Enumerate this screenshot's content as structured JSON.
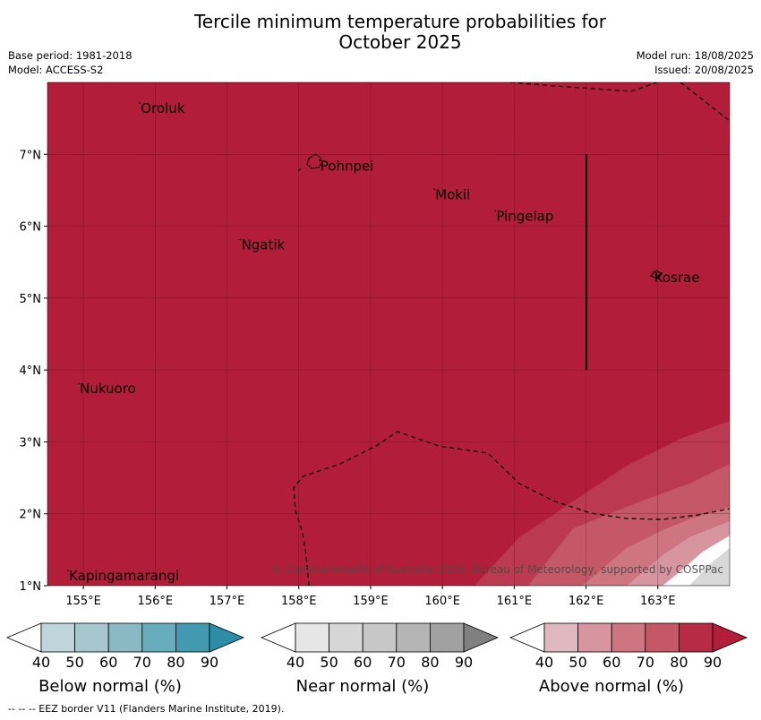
{
  "title_line1": "Tercile minimum temperature probabilities for",
  "title_line2": "October 2025",
  "base_period": "Base period: 1981-2018",
  "model": "Model: ACCESS-S2",
  "model_run": "Model run: 18/08/2025",
  "issued": "Issued: 20/08/2025",
  "map": {
    "lon_range": [
      154.5,
      164.0
    ],
    "lat_range": [
      1.0,
      8.0
    ],
    "lon_ticks": [
      "155°E",
      "156°E",
      "157°E",
      "158°E",
      "159°E",
      "160°E",
      "161°E",
      "162°E",
      "163°E"
    ],
    "lat_ticks": [
      "1°N",
      "2°N",
      "3°N",
      "4°N",
      "5°N",
      "6°N",
      "7°N"
    ],
    "fill_color": "#b21e39",
    "places": [
      {
        "name": "Oroluk",
        "lon": 155.8,
        "lat": 7.65
      },
      {
        "name": "Pohnpei",
        "lon": 158.3,
        "lat": 6.85
      },
      {
        "name": "Mokil",
        "lon": 159.9,
        "lat": 6.45
      },
      {
        "name": "Pingelap",
        "lon": 160.75,
        "lat": 6.15
      },
      {
        "name": "Ngatik",
        "lon": 157.2,
        "lat": 5.75
      },
      {
        "name": "Kosrae",
        "lon": 162.95,
        "lat": 5.3
      },
      {
        "name": "Nukuoro",
        "lon": 154.95,
        "lat": 3.75
      },
      {
        "name": "Kapingamarangi",
        "lon": 154.8,
        "lat": 1.15
      }
    ],
    "copyright": "© Commonwealth of Australia 2025, Bureau of Meteorology, supported by COSPPac"
  },
  "legends": [
    {
      "label": "Below normal (%)",
      "colors": [
        "#bed5dc",
        "#a6c7ce",
        "#8bb9c3",
        "#68adbd",
        "#4399af",
        "#2c8da6"
      ],
      "ticks": [
        "40",
        "50",
        "60",
        "70",
        "80",
        "90"
      ]
    },
    {
      "label": "Near normal (%)",
      "colors": [
        "#e6e6e6",
        "#d6d6d6",
        "#c7c7c7",
        "#b5b5b5",
        "#a1a1a1",
        "#808080"
      ],
      "ticks": [
        "40",
        "50",
        "60",
        "70",
        "80",
        "90"
      ]
    },
    {
      "label": "Above normal (%)",
      "colors": [
        "#e0b8bf",
        "#d6959f",
        "#cd7580",
        "#c45867",
        "#b82b45",
        "#b21e39"
      ],
      "ticks": [
        "40",
        "50",
        "60",
        "70",
        "80",
        "90"
      ]
    }
  ],
  "footnote": "--  --  -- EEZ border V11 (Flanders Marine Institute, 2019)."
}
